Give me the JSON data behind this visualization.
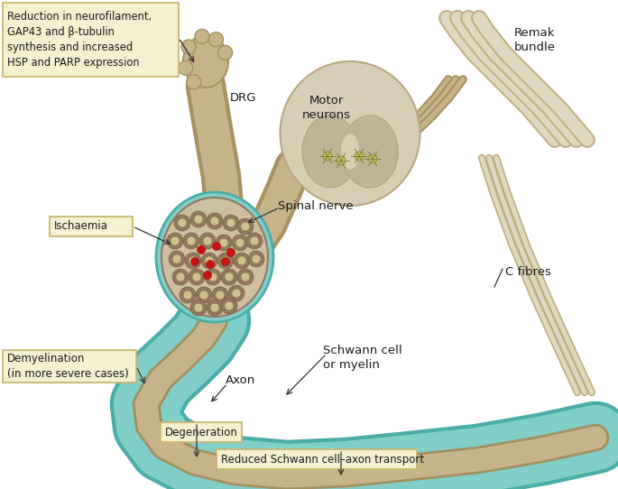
{
  "bg_color": "#ffffff",
  "label_bg_color": "#f5f0d0",
  "label_border_color": "#c8b870",
  "text_color": "#1a1a1a",
  "drg_color": "#c8b48a",
  "nerve_color": "#c8b48a",
  "nerve_dark": "#a89060",
  "schwann_color": "#82cec8",
  "schwann_dark": "#4aada8",
  "schwann_spot": "#2a9090",
  "axon_color": "#c8b48a",
  "axon_dark": "#a09060",
  "spinal_color": "#d8cdb5",
  "spinal_dark": "#b8a880",
  "inner_gray": "#c0b498",
  "fascicle_bg": "#ccc0a0",
  "fascicle_dark": "#907860",
  "red_color": "#cc1111",
  "remak_color": "#e0d8c0",
  "remak_dark": "#c0b080",
  "cfibre_color": "#e0d8c0",
  "cfibre_dark": "#c0b080",
  "label_box_texts": {
    "top_left": "Reduction in neurofilament,\nGAP43 and β-tubulin\nsynthesis and increased\nHSP and PARP expression",
    "ischaemia": "Ischaemia",
    "demyelination": "Demyelination\n(in more severe cases)",
    "degeneration": "Degeneration",
    "reduced_transport": "Reduced Schwann cell–axon transport"
  },
  "annotation_texts": {
    "drg": "DRG",
    "motor_neurons": "Motor\nneurons",
    "spinal_nerve": "Spinal nerve",
    "remak_bundle": "Remak\nbundle",
    "c_fibres": "C fibres",
    "schwann_cell": "Schwann cell\nor myelin",
    "axon": "Axon"
  },
  "figsize": [
    6.85,
    5.42
  ],
  "dpi": 100
}
